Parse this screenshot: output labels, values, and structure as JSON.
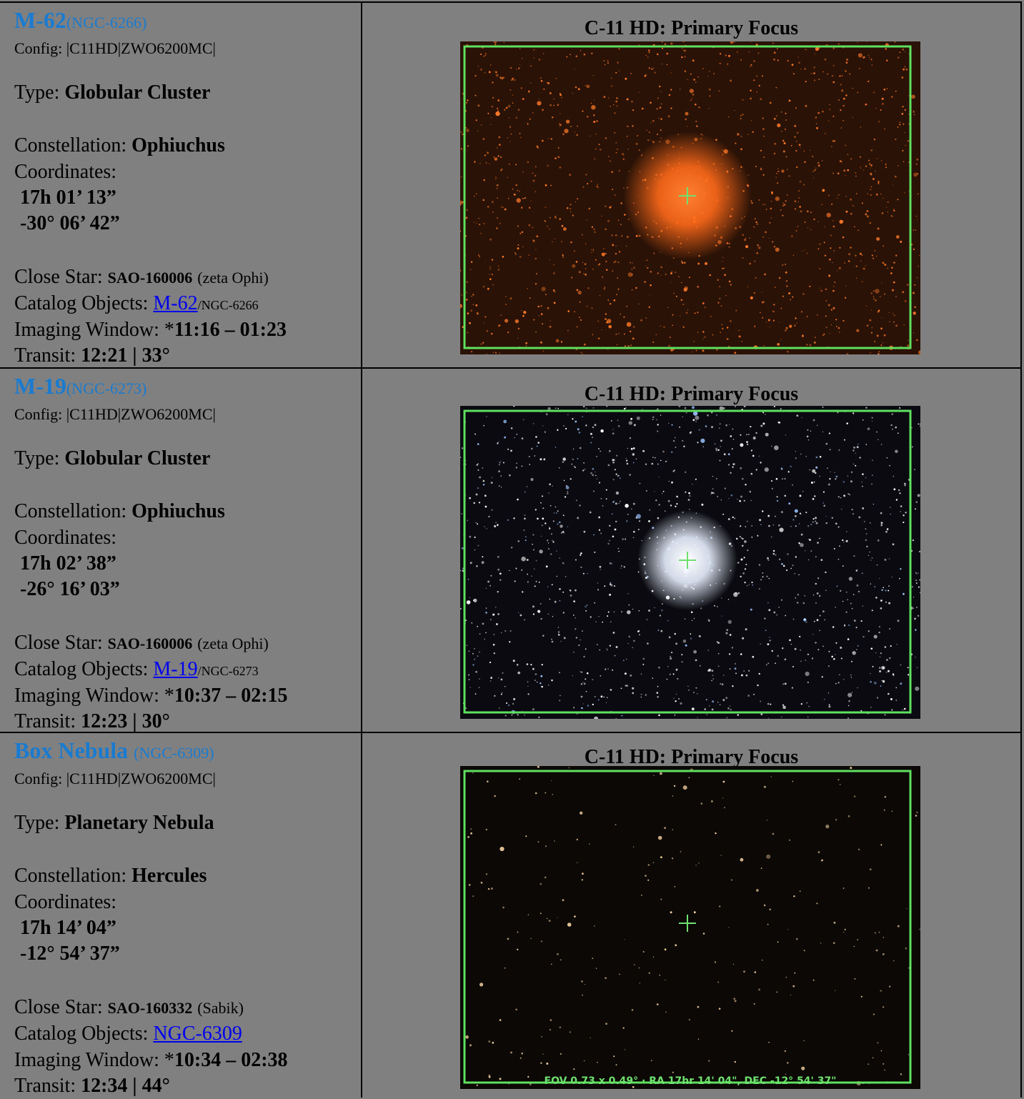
{
  "labels": {
    "config": "Config:",
    "type": "Type:",
    "constellation": "Constellation:",
    "coordinates": "Coordinates:",
    "close_star": "Close Star:",
    "catalog": "Catalog Objects:",
    "window": "Imaging Window: *",
    "transit": "Transit:"
  },
  "rows": [
    {
      "name": "M-62",
      "ngc": "(NGC-6266)",
      "config": "|C11HD|ZWO6200MC|",
      "type": "Globular Cluster",
      "constellation": "Ophiuchus",
      "ra": "17h 01’ 13”",
      "dec": "-30° 06’ 42”",
      "close_star_id": "SAO-160006",
      "close_star_name": "(zeta Ophi)",
      "catalog_link": "M-62",
      "catalog_rest": "/NGC-6266",
      "window": "11:16 – 01:23",
      "transit": "12:21 | 33°",
      "image_title": "C-11 HD: Primary Focus"
    },
    {
      "name": "M-19",
      "ngc": "(NGC-6273)",
      "config": "|C11HD|ZWO6200MC|",
      "type": "Globular Cluster",
      "constellation": "Ophiuchus",
      "ra": "17h 02’ 38”",
      "dec": "-26° 16’ 03”",
      "close_star_id": "SAO-160006",
      "close_star_name": "(zeta Ophi)",
      "catalog_link": "M-19",
      "catalog_rest": "/NGC-6273",
      "window": "10:37 – 02:15",
      "transit": "12:23 | 30°",
      "image_title": "C-11 HD: Primary Focus"
    },
    {
      "name": "Box Nebula",
      "ngc": "(NGC-6309)",
      "config": "|C11HD|ZWO6200MC|",
      "type": "Planetary Nebula",
      "constellation": "Hercules",
      "ra": "17h 14’ 04”",
      "dec": "-12° 54’ 37”",
      "close_star_id": "SAO-160332",
      "close_star_name": "(Sabik)",
      "catalog_link": "NGC-6309",
      "window": "10:34 – 02:38",
      "transit": "12:34 | 44°",
      "image_title": "C-11 HD: Primary Focus",
      "image_caption": "FOV 0.73 x 0.49° · RA 17hr 14' 04\", DEC -12° 54' 37\""
    }
  ]
}
